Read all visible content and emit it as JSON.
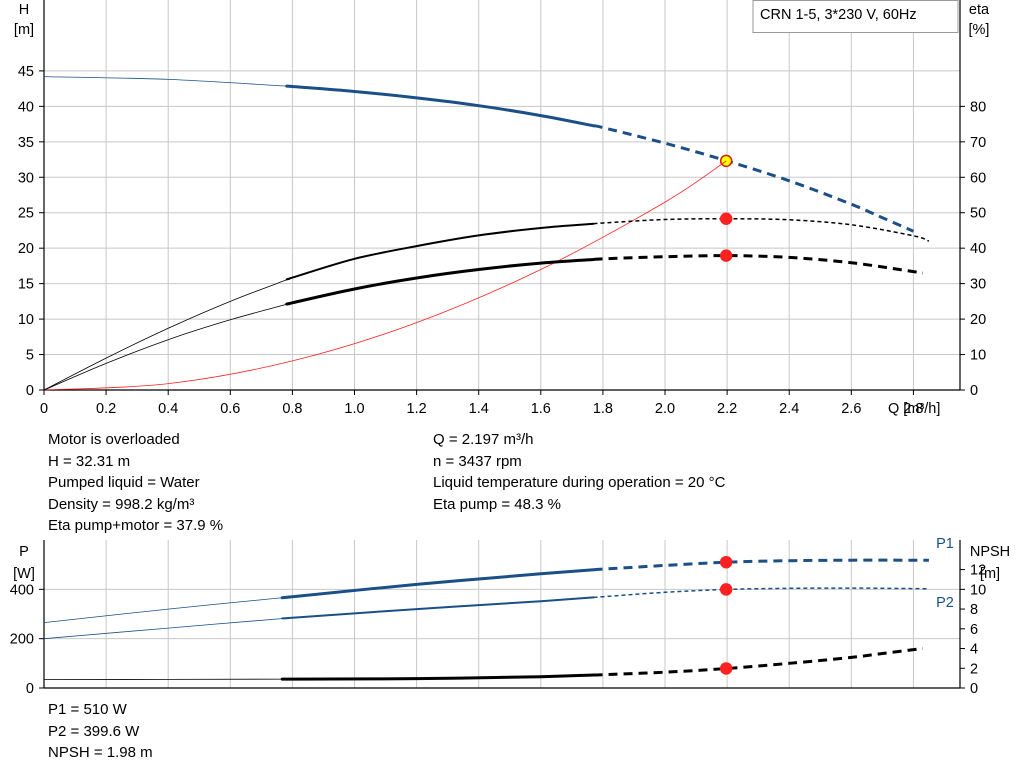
{
  "pump_label": "CRN 1-5, 3*230 V, 60Hz",
  "colors": {
    "blue": "#1a4f87",
    "red": "#ff2020",
    "black": "#000000",
    "grid": "#c8c8c8",
    "highlight": "#ffff00"
  },
  "info_main": {
    "left": [
      "Motor is overloaded",
      "H = 32.31 m",
      "Pumped liquid = Water",
      "Density = 998.2 kg/m³",
      "Eta pump+motor = 37.9 %"
    ],
    "right": [
      "Q = 2.197 m³/h",
      "n = 3437 rpm",
      "Liquid temperature during operation = 20 °C",
      "Eta pump = 48.3 %"
    ]
  },
  "info_power": [
    "P1 = 510 W",
    "P2 = 399.6 W",
    "NPSH = 1.98 m"
  ],
  "chart_data": [
    {
      "type": "line",
      "x_axis": {
        "label": "Q [m³/h]",
        "range": [
          0,
          2.95
        ],
        "ticks": [
          0,
          0.2,
          0.4,
          0.6,
          0.8,
          1.0,
          1.2,
          1.4,
          1.6,
          1.8,
          2.0,
          2.2,
          2.4,
          2.6,
          2.8
        ],
        "tick_labels": [
          "0",
          "0.2",
          "0.4",
          "0.6",
          "0.8",
          "1.0",
          "1.2",
          "1.4",
          "1.6",
          "1.8",
          "2.0",
          "2.2",
          "2.4",
          "2.6",
          "2.8"
        ]
      },
      "y_left": {
        "label": [
          "H",
          "[m]"
        ],
        "range": [
          0,
          55
        ],
        "ticks": [
          0,
          5,
          10,
          15,
          20,
          25,
          30,
          35,
          40,
          45
        ]
      },
      "y_right": {
        "label": [
          "eta",
          "[%]"
        ],
        "range": [
          0,
          110
        ],
        "ticks": [
          0,
          10,
          20,
          30,
          40,
          50,
          60,
          70,
          80
        ]
      },
      "grid": true,
      "duty_point": {
        "q": 2.197
      },
      "series": [
        {
          "axis": "left",
          "color": "blue",
          "width": 3,
          "style": "curve",
          "points": [
            [
              0,
              44.2
            ],
            [
              0.4,
              43.8
            ],
            [
              0.8,
              42.8
            ],
            [
              1.0,
              42.1
            ],
            [
              1.2,
              41.2
            ],
            [
              1.4,
              40.1
            ],
            [
              1.6,
              38.7
            ],
            [
              1.8,
              37.0
            ],
            [
              2.0,
              34.8
            ],
            [
              2.2,
              32.3
            ],
            [
              2.4,
              29.5
            ],
            [
              2.6,
              26.2
            ],
            [
              2.7,
              24.3
            ],
            [
              2.8,
              22.4
            ]
          ],
          "thin_until": 0.79,
          "dash_from": 1.77,
          "marker": {
            "q": 2.197,
            "v": 32.31,
            "fill": "highlight"
          }
        },
        {
          "axis": "right",
          "color": "red",
          "width": 0.8,
          "style": "curve",
          "points": [
            [
              0,
              0
            ],
            [
              0.4,
              1.8
            ],
            [
              0.8,
              8.2
            ],
            [
              1.2,
              19.0
            ],
            [
              1.6,
              34.0
            ],
            [
              2.0,
              53.0
            ],
            [
              2.197,
              64.6
            ]
          ]
        },
        {
          "axis": "right",
          "color": "black",
          "width": 2,
          "style": "curve",
          "points": [
            [
              0,
              0
            ],
            [
              0.2,
              9.0
            ],
            [
              0.4,
              17.4
            ],
            [
              0.6,
              25.0
            ],
            [
              0.8,
              31.7
            ],
            [
              1.0,
              37.0
            ],
            [
              1.2,
              40.6
            ],
            [
              1.4,
              43.6
            ],
            [
              1.6,
              45.7
            ],
            [
              1.8,
              47.1
            ],
            [
              2.0,
              48.1
            ],
            [
              2.2,
              48.3
            ],
            [
              2.4,
              48.0
            ],
            [
              2.6,
              46.6
            ],
            [
              2.8,
              43.5
            ],
            [
              2.85,
              42.0
            ]
          ],
          "thin_until": 0.79,
          "dash_from": 1.77,
          "dash_thin": true,
          "marker": {
            "q": 2.197,
            "v": 48.3,
            "fill": "red"
          }
        },
        {
          "axis": "right",
          "color": "black",
          "width": 3,
          "style": "curve",
          "points": [
            [
              0,
              0
            ],
            [
              0.2,
              7.5
            ],
            [
              0.4,
              14.2
            ],
            [
              0.6,
              19.8
            ],
            [
              0.8,
              24.6
            ],
            [
              1.0,
              28.5
            ],
            [
              1.2,
              31.6
            ],
            [
              1.4,
              34.0
            ],
            [
              1.6,
              35.8
            ],
            [
              1.8,
              37.0
            ],
            [
              2.0,
              37.6
            ],
            [
              2.2,
              37.9
            ],
            [
              2.4,
              37.4
            ],
            [
              2.6,
              35.9
            ],
            [
              2.8,
              33.4
            ],
            [
              2.83,
              33.0
            ]
          ],
          "thin_until": 0.79,
          "dash_from": 1.77,
          "marker": {
            "q": 2.197,
            "v": 37.9,
            "fill": "red"
          }
        }
      ]
    },
    {
      "type": "line",
      "x_axis": {
        "label": "Q [m³/h]",
        "range": [
          0,
          2.95
        ]
      },
      "y_left": {
        "label": [
          "P",
          "[W]"
        ],
        "range": [
          0,
          600
        ],
        "ticks": [
          0,
          200,
          400
        ]
      },
      "y_right": {
        "label": [
          "NPSH",
          "[m]"
        ],
        "range": [
          0,
          15
        ],
        "ticks": [
          0,
          2,
          4,
          6,
          8,
          10,
          12
        ]
      },
      "grid": true,
      "series": [
        {
          "name": "P1",
          "axis": "left",
          "color": "blue",
          "width": 3,
          "style": "curve",
          "points": [
            [
              0,
              265
            ],
            [
              0.4,
              320
            ],
            [
              0.8,
              370
            ],
            [
              1.2,
              420
            ],
            [
              1.6,
              463
            ],
            [
              1.8,
              482
            ],
            [
              2.0,
              497
            ],
            [
              2.2,
              510
            ],
            [
              2.4,
              516
            ],
            [
              2.6,
              518
            ],
            [
              2.8,
              518
            ],
            [
              2.85,
              518
            ]
          ],
          "thin_until": 0.79,
          "dash_from": 1.77,
          "marker": {
            "q": 2.197,
            "v": 510,
            "fill": "red"
          }
        },
        {
          "name": "P2",
          "axis": "left",
          "color": "blue",
          "width": 2,
          "style": "curve",
          "points": [
            [
              0,
              200
            ],
            [
              0.4,
              243
            ],
            [
              0.8,
              285
            ],
            [
              1.2,
              320
            ],
            [
              1.6,
              352
            ],
            [
              1.8,
              370
            ],
            [
              2.0,
              388
            ],
            [
              2.2,
              399.6
            ],
            [
              2.4,
              404
            ],
            [
              2.6,
              405
            ],
            [
              2.8,
              403
            ],
            [
              2.85,
              402
            ]
          ],
          "thin_until": 0.79,
          "dash_from": 1.77,
          "dash_thin": true,
          "marker": {
            "q": 2.197,
            "v": 399.6,
            "fill": "red"
          }
        },
        {
          "axis": "right",
          "color": "black",
          "width": 3,
          "style": "curve",
          "points": [
            [
              0,
              0.85
            ],
            [
              0.8,
              0.9
            ],
            [
              1.2,
              0.95
            ],
            [
              1.6,
              1.15
            ],
            [
              1.8,
              1.35
            ],
            [
              2.0,
              1.6
            ],
            [
              2.2,
              1.98
            ],
            [
              2.4,
              2.5
            ],
            [
              2.6,
              3.1
            ],
            [
              2.7,
              3.5
            ],
            [
              2.83,
              4.0
            ]
          ],
          "thin_until": 0.79,
          "dash_from": 1.77,
          "marker": {
            "q": 2.197,
            "v": 1.98,
            "fill": "red"
          }
        }
      ]
    }
  ]
}
